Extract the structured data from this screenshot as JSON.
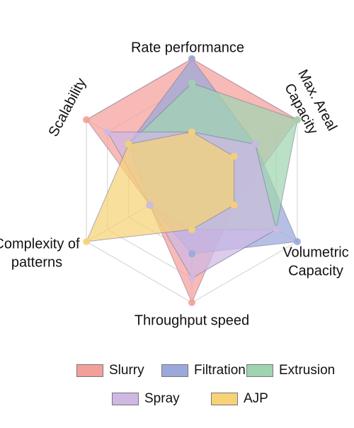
{
  "chart_data": {
    "type": "radar",
    "axes": [
      "Rate performance",
      "Max. Areal Capacity",
      "Volumetric Capacity",
      "Throughput speed",
      "Complexity of patterns",
      "Scalability"
    ],
    "axis_label_lines": [
      [
        "Rate performance"
      ],
      [
        "Max. Areal",
        "Capacity"
      ],
      [
        "Volumetric",
        "Capacity"
      ],
      [
        "Throughput speed"
      ],
      [
        "Complexity of",
        "patterns"
      ],
      [
        "Scalability"
      ]
    ],
    "range": [
      0,
      5
    ],
    "grid": true,
    "legend_position": "bottom",
    "series": [
      {
        "name": "Slurry",
        "color": "#f4a09a",
        "values": [
          5,
          5,
          2,
          5,
          2,
          5
        ]
      },
      {
        "name": "Filtration",
        "color": "#9aa8dc",
        "values": [
          5,
          3,
          5,
          3,
          2,
          3
        ]
      },
      {
        "name": "Extrusion",
        "color": "#9fd4b0",
        "values": [
          4,
          5,
          4,
          2,
          2,
          3
        ]
      },
      {
        "name": "Spray",
        "color": "#cfb8e4",
        "values": [
          2,
          3,
          4,
          4,
          2,
          4
        ]
      },
      {
        "name": "AJP",
        "color": "#f7d276",
        "values": [
          2,
          2,
          2,
          2,
          5,
          3
        ]
      }
    ]
  }
}
